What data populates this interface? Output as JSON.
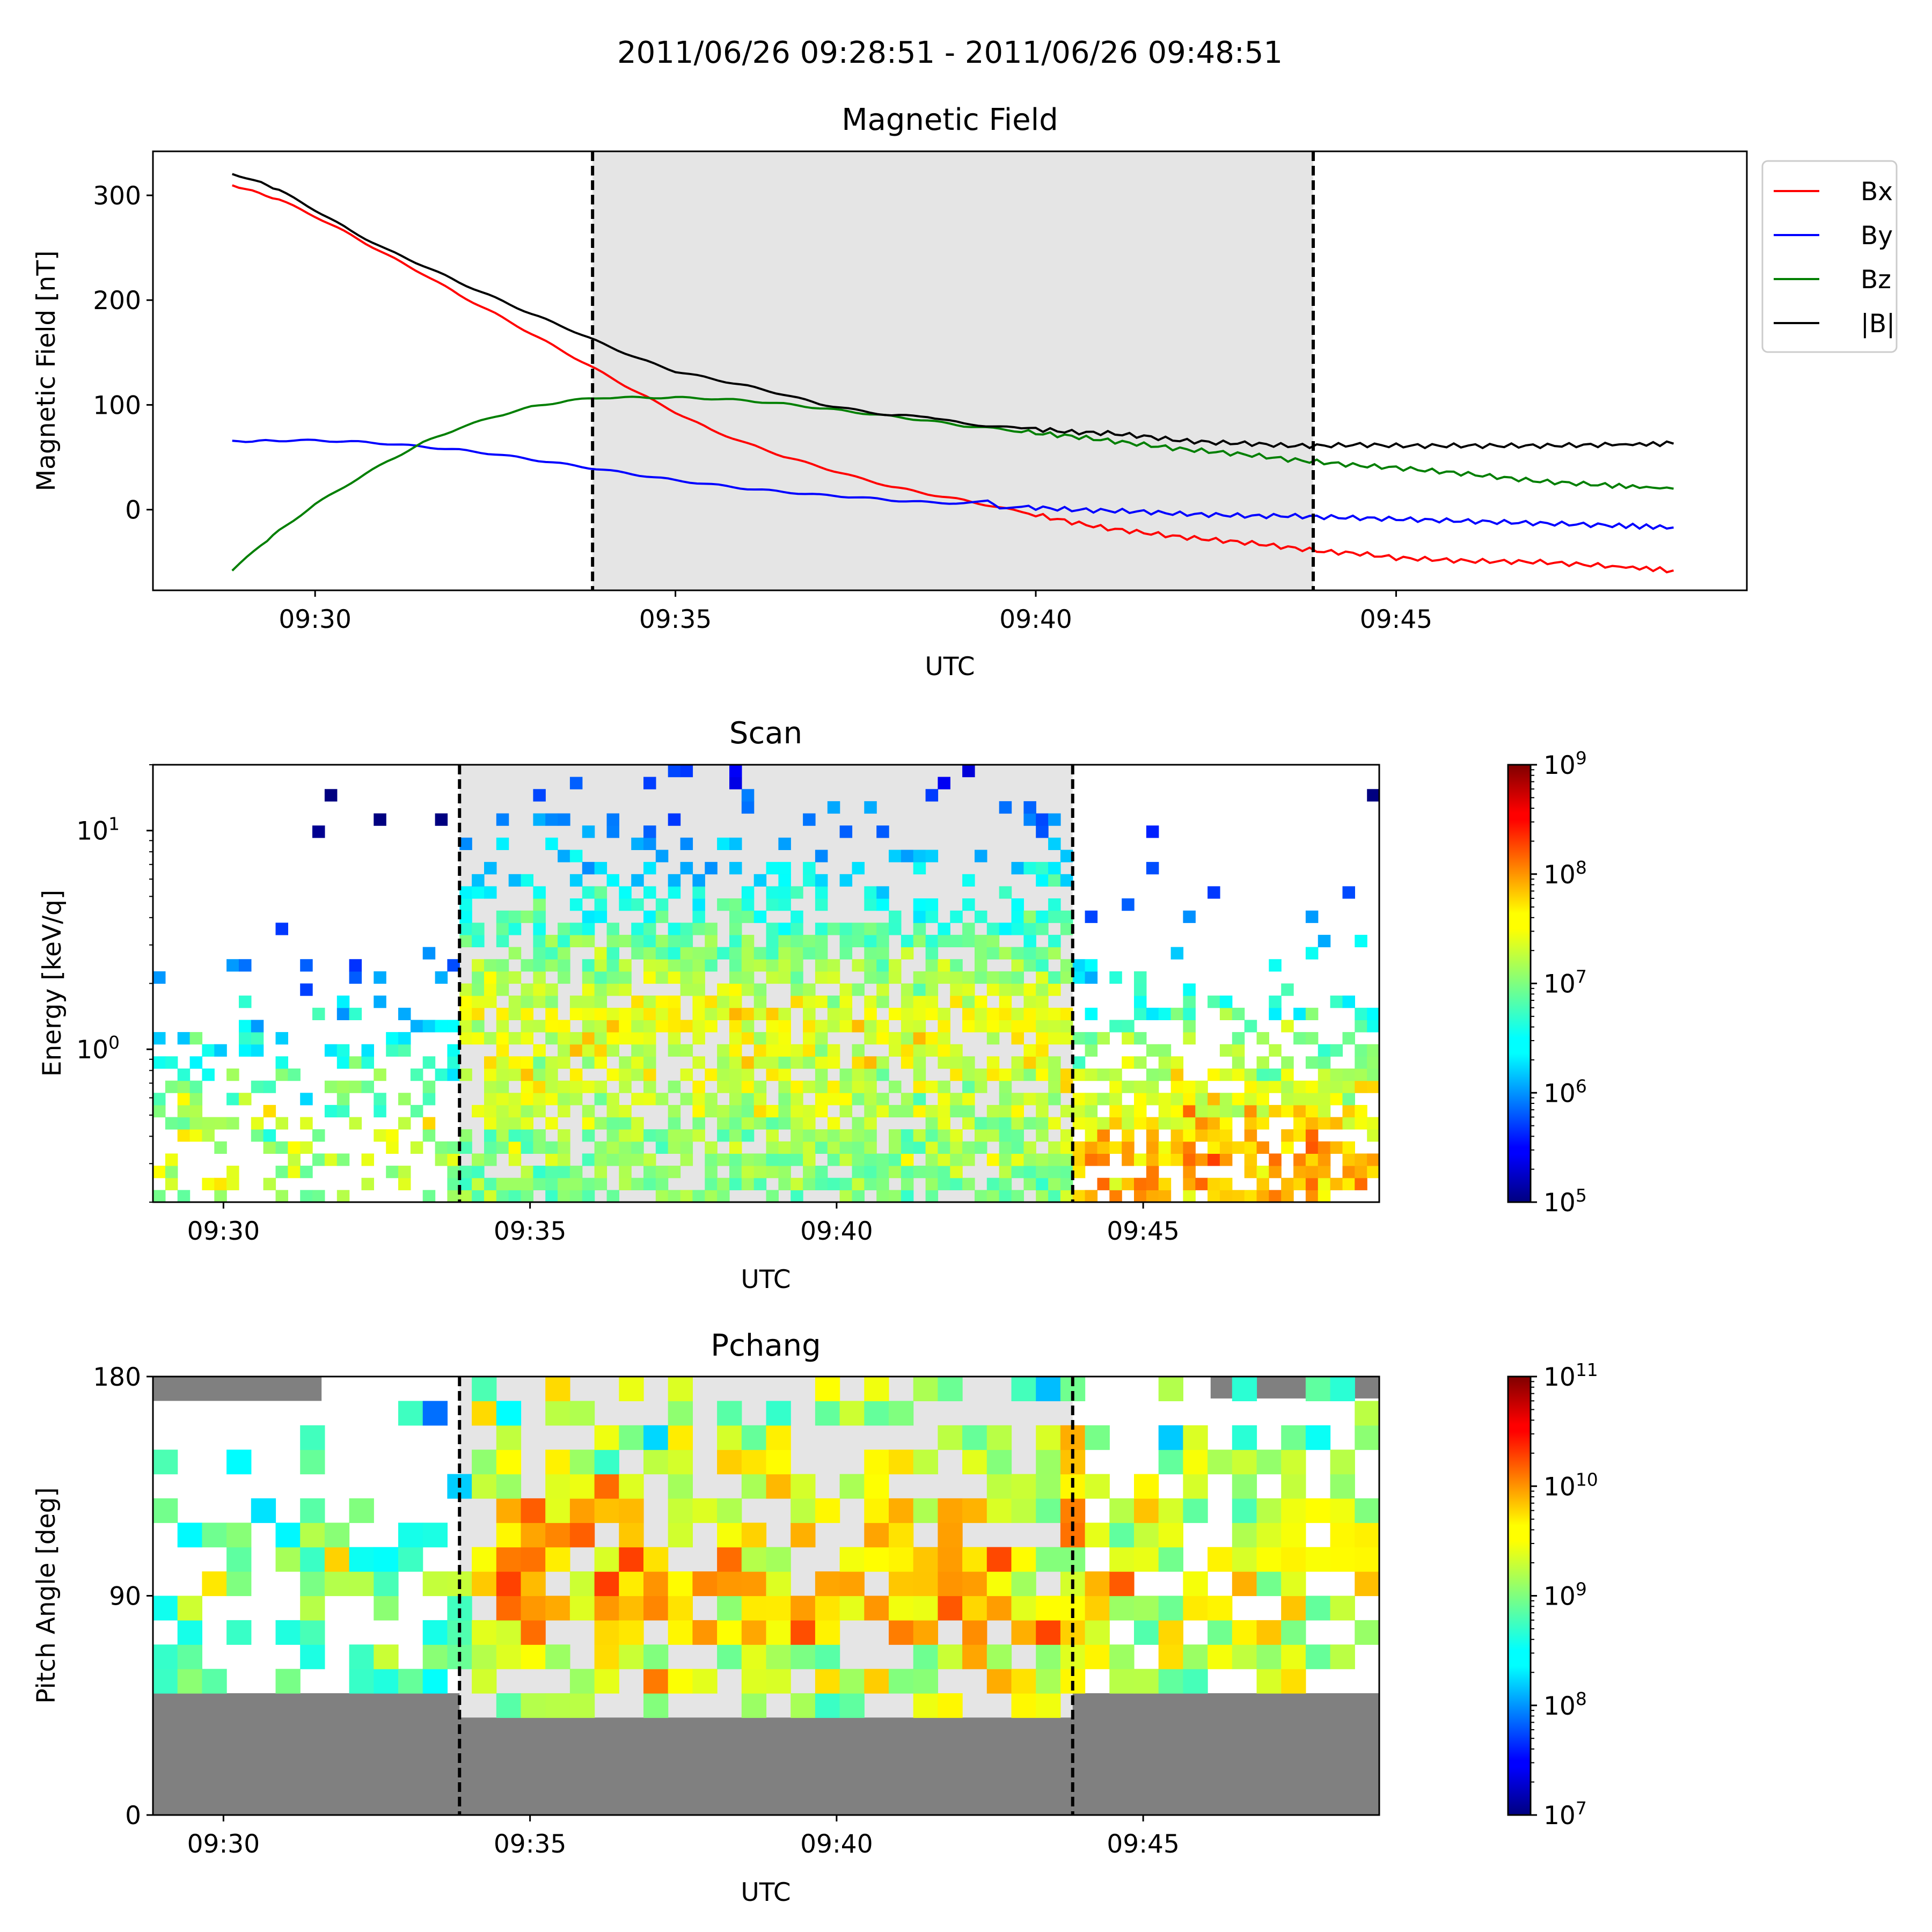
{
  "figure": {
    "suptitle": "2011/06/26 09:28:51 - 2011/06/26 09:48:51"
  },
  "shading": {
    "start": "09:33:51",
    "end": "09:43:51",
    "fill": "#e5e5e5"
  },
  "chart_data": [
    {
      "id": "magnetic-field",
      "type": "line",
      "title": "Magnetic Field",
      "xlabel": "UTC",
      "ylabel": "Magnetic Field [nT]",
      "xlim": [
        "09:27:45",
        "09:49:52"
      ],
      "ylim": [
        -77,
        342
      ],
      "xticks": [
        "09:30",
        "09:35",
        "09:40",
        "09:45"
      ],
      "yticks": [
        0,
        100,
        200,
        300
      ],
      "legend": "outside-right",
      "series": [
        {
          "name": "Bx",
          "color": "#ff0000",
          "x": [
            "09:28:51",
            "09:29:30",
            "09:30:00",
            "09:30:30",
            "09:31:00",
            "09:31:30",
            "09:32:00",
            "09:32:30",
            "09:33:00",
            "09:33:30",
            "09:34:00",
            "09:34:30",
            "09:35:00",
            "09:35:30",
            "09:36:00",
            "09:36:30",
            "09:37:00",
            "09:37:30",
            "09:38:00",
            "09:38:30",
            "09:39:00",
            "09:39:30",
            "09:40:00",
            "09:40:30",
            "09:41:00",
            "09:41:30",
            "09:42:00",
            "09:42:30",
            "09:43:00",
            "09:43:30",
            "09:44:00",
            "09:44:30",
            "09:45:00",
            "09:46:00",
            "09:47:00",
            "09:48:00",
            "09:48:51"
          ],
          "y": [
            310,
            296,
            280,
            262,
            243,
            225,
            205,
            187,
            168,
            149,
            130,
            111,
            93,
            76,
            63,
            51,
            41,
            31,
            22,
            15,
            9,
            2,
            -5,
            -12,
            -18,
            -22,
            -26,
            -29,
            -32,
            -36,
            -40,
            -42,
            -46,
            -49,
            -50,
            -54,
            -58
          ]
        },
        {
          "name": "By",
          "color": "#0000ff",
          "x": [
            "09:28:51",
            "09:29:30",
            "09:30:00",
            "09:30:30",
            "09:31:00",
            "09:31:30",
            "09:32:00",
            "09:32:30",
            "09:33:00",
            "09:33:30",
            "09:34:00",
            "09:34:30",
            "09:35:00",
            "09:35:30",
            "09:36:00",
            "09:36:30",
            "09:37:00",
            "09:37:30",
            "09:38:00",
            "09:38:30",
            "09:39:00",
            "09:39:20",
            "09:39:30",
            "09:40:00",
            "09:40:30",
            "09:41:00",
            "09:41:30",
            "09:42:00",
            "09:42:30",
            "09:43:00",
            "09:43:30",
            "09:44:00",
            "09:44:30",
            "09:45:00",
            "09:46:00",
            "09:47:00",
            "09:48:00",
            "09:48:51"
          ],
          "y": [
            65,
            66,
            66,
            65,
            63,
            60,
            57,
            53,
            48,
            43,
            38,
            33,
            28,
            24,
            20,
            17,
            14,
            12,
            9,
            7,
            6,
            8,
            2,
            2,
            0,
            -1,
            -2,
            -4,
            -5,
            -6,
            -6,
            -7,
            -8,
            -9,
            -11,
            -13,
            -15,
            -17
          ]
        },
        {
          "name": "Bz",
          "color": "#007f00",
          "x": [
            "09:28:51",
            "09:29:15",
            "09:29:30",
            "09:30:00",
            "09:30:30",
            "09:31:00",
            "09:31:30",
            "09:32:00",
            "09:32:30",
            "09:33:00",
            "09:33:30",
            "09:34:00",
            "09:34:30",
            "09:35:00",
            "09:35:30",
            "09:36:00",
            "09:36:30",
            "09:37:00",
            "09:37:30",
            "09:38:00",
            "09:38:30",
            "09:39:00",
            "09:39:30",
            "09:40:00",
            "09:40:30",
            "09:41:00",
            "09:41:30",
            "09:42:00",
            "09:42:30",
            "09:43:00",
            "09:43:30",
            "09:44:00",
            "09:44:30",
            "09:45:00",
            "09:46:00",
            "09:47:00",
            "09:48:00",
            "09:48:51"
          ],
          "y": [
            -58,
            -34,
            -20,
            5,
            26,
            46,
            64,
            78,
            89,
            98,
            104,
            107,
            107,
            107,
            106,
            104,
            101,
            97,
            93,
            89,
            85,
            80,
            77,
            73,
            70,
            66,
            62,
            58,
            55,
            52,
            48,
            45,
            42,
            40,
            34,
            27,
            23,
            20
          ]
        },
        {
          "name": "|B|",
          "color": "#000000",
          "x": [
            "09:28:51",
            "09:29:15",
            "09:29:30",
            "09:30:00",
            "09:30:30",
            "09:31:00",
            "09:31:30",
            "09:32:00",
            "09:32:30",
            "09:33:00",
            "09:33:30",
            "09:34:00",
            "09:34:30",
            "09:35:00",
            "09:35:30",
            "09:36:00",
            "09:36:30",
            "09:37:00",
            "09:37:30",
            "09:38:00",
            "09:38:30",
            "09:39:00",
            "09:39:30",
            "09:40:00",
            "09:40:30",
            "09:41:00",
            "09:41:30",
            "09:42:00",
            "09:42:30",
            "09:43:00",
            "09:43:30",
            "09:44:00",
            "09:44:30",
            "09:45:00",
            "09:46:00",
            "09:47:00",
            "09:48:00",
            "09:48:51"
          ],
          "y": [
            321,
            312,
            305,
            286,
            266,
            248,
            233,
            217,
            202,
            187,
            173,
            158,
            144,
            132,
            125,
            118,
            110,
            101,
            95,
            90,
            89,
            82,
            79,
            77,
            74,
            73,
            70,
            66,
            64,
            63,
            61,
            61,
            62,
            61,
            61,
            61,
            62,
            63
          ]
        }
      ]
    },
    {
      "id": "scan",
      "type": "heatmap",
      "title": "Scan",
      "xlabel": "UTC",
      "ylabel": "Energy [keV/q]",
      "yscale": "log",
      "xlim": [
        "09:28:51",
        "09:48:51"
      ],
      "ylim": [
        0.2,
        20
      ],
      "xticks": [
        "09:30",
        "09:35",
        "09:40",
        "09:45"
      ],
      "yticks": [
        "10^0",
        "10^1"
      ],
      "colorbar": {
        "scale": "log",
        "min": 100000.0,
        "max": 1000000000.0,
        "ticks": [
          "10^5",
          "10^6",
          "10^7",
          "10^8",
          "10^9"
        ],
        "colormap": "jet"
      },
      "pattern": {
        "time_bins": 100,
        "energy_bins": 36,
        "segments": [
          {
            "from": "09:28:51",
            "to": "09:33:51",
            "occupancy": 0.35,
            "log_flux_peak": 7.3,
            "peak_energy_keV": 0.35,
            "log_flux_spread": 0.5
          },
          {
            "from": "09:33:51",
            "to": "09:43:51",
            "occupancy": 0.72,
            "log_flux_peak": 7.45,
            "peak_energy_keV": 1.4,
            "log_flux_spread": 0.35
          },
          {
            "from": "09:43:51",
            "to": "09:48:51",
            "occupancy": 0.7,
            "log_flux_peak": 7.9,
            "peak_energy_keV": 0.3,
            "log_flux_spread": 0.4
          }
        ]
      }
    },
    {
      "id": "pchang",
      "type": "heatmap",
      "title": "Pchang",
      "xlabel": "UTC",
      "ylabel": "Pitch Angle [deg]",
      "xlim": [
        "09:28:51",
        "09:48:51"
      ],
      "ylim": [
        0,
        180
      ],
      "xticks": [
        "09:30",
        "09:35",
        "09:40",
        "09:45"
      ],
      "yticks": [
        0,
        90,
        180
      ],
      "colorbar": {
        "scale": "log",
        "min": 10000000.0,
        "max": 100000000000.0,
        "ticks": [
          "10^7",
          "10^8",
          "10^9",
          "10^10",
          "10^11"
        ],
        "colormap": "jet"
      },
      "no_coverage_color": "#808080",
      "pattern": {
        "time_bins": 50,
        "angle_bins": 18,
        "segments": [
          {
            "from": "09:28:51",
            "to": "09:33:51",
            "occupancy": 0.45,
            "log_flux_peak": 9.0,
            "coverage_deg": [
              50,
              170
            ]
          },
          {
            "from": "09:33:51",
            "to": "09:43:51",
            "occupancy": 0.8,
            "log_flux_peak": 9.75,
            "coverage_deg": [
              40,
              180
            ]
          },
          {
            "from": "09:43:51",
            "to": "09:48:51",
            "occupancy": 0.8,
            "log_flux_peak": 9.5,
            "coverage_deg": [
              50,
              180
            ]
          }
        ]
      }
    }
  ]
}
